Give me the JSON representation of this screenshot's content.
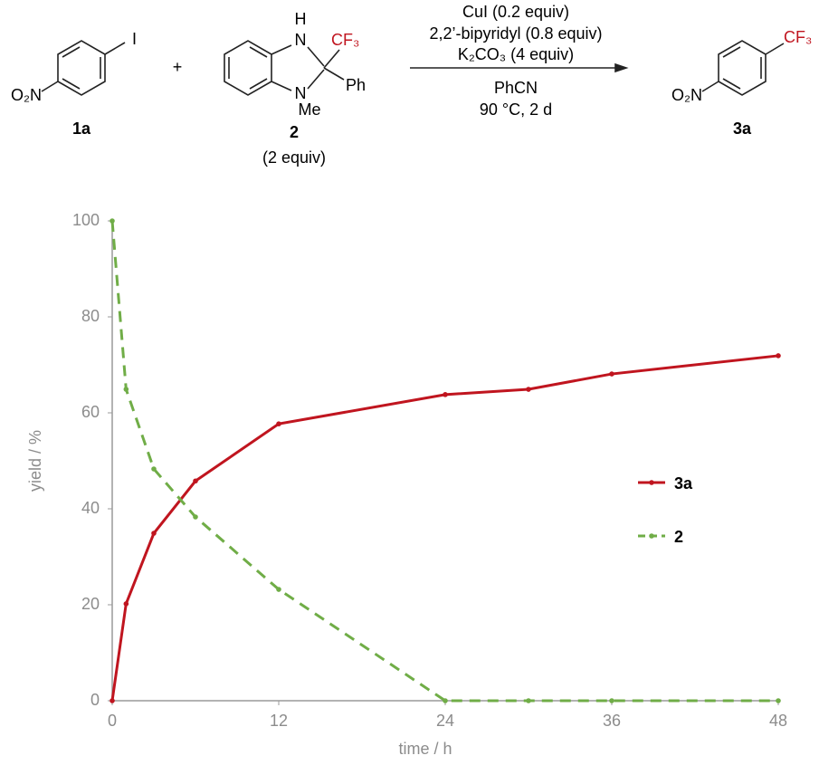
{
  "scheme": {
    "reactant1": {
      "label": "1a",
      "atoms": [
        "I",
        "O₂N"
      ]
    },
    "plus": "+",
    "reactant2": {
      "label": "2",
      "amount": "(2 equiv)",
      "atoms": [
        "H",
        "N",
        "CF₃",
        "Ph",
        "N",
        "Me"
      ]
    },
    "conditions_above": [
      "CuI (0.2 equiv)",
      "2,2’-bipyridyl (0.8 equiv)",
      "K₂CO₃ (4 equiv)"
    ],
    "conditions_below": [
      "PhCN",
      "90 °C, 2 d"
    ],
    "product": {
      "label": "3a",
      "atoms": [
        "CF₃",
        "O₂N"
      ]
    }
  },
  "chart_data": {
    "type": "line",
    "xlabel": "time / h",
    "ylabel": "yield / %",
    "x": [
      0,
      1,
      3,
      6,
      12,
      24,
      30,
      36,
      48
    ],
    "series": [
      {
        "name": "3a",
        "color": "#c0151f",
        "dash": false,
        "values": [
          0,
          20.2,
          34.9,
          45.8,
          57.7,
          63.8,
          64.9,
          68.1,
          71.9
        ]
      },
      {
        "name": "2",
        "color": "#70ad47",
        "dash": true,
        "values": [
          100,
          64.9,
          48.3,
          38.3,
          23.2,
          0,
          0,
          0,
          0
        ]
      }
    ],
    "xlim": [
      0,
      48
    ],
    "xticks": [
      0,
      12,
      24,
      36,
      48
    ],
    "ylim": [
      0,
      100
    ],
    "yticks": [
      0,
      20,
      40,
      60,
      80,
      100
    ],
    "legend": "right"
  }
}
